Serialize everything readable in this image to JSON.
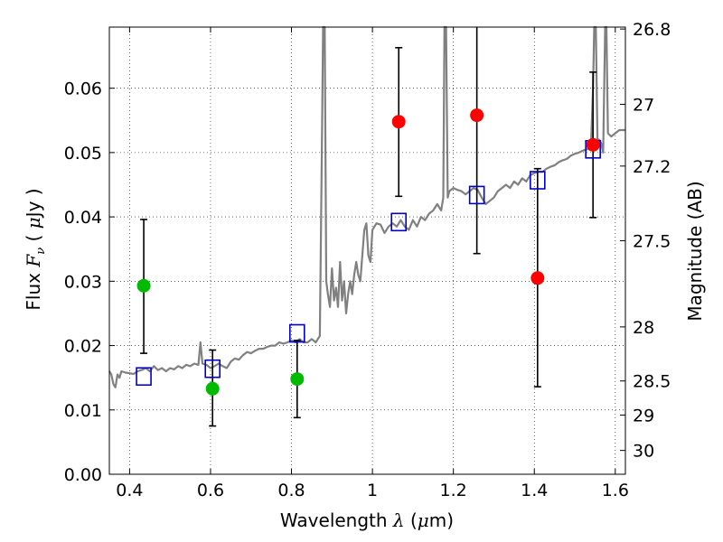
{
  "chart_data": {
    "type": "scatter",
    "xlabel": {
      "prefix": "Wavelength  ",
      "symbol": "λ",
      "unit_open": " (",
      "unit_mu": "μ",
      "unit_rest": "m)"
    },
    "ylabel": {
      "prefix": "Flux  ",
      "symbol": "F",
      "subscript": "ν",
      "unit_open": "  ( ",
      "unit_mu": "μ",
      "unit_rest": "Jy )"
    },
    "y2label": "Magnitude (AB)",
    "xlim": [
      0.35,
      1.625
    ],
    "ylim": [
      0.0,
      0.0695
    ],
    "grid": true,
    "x_ticks": [
      {
        "value": 0.4,
        "label": "0.4"
      },
      {
        "value": 0.6,
        "label": "0.6"
      },
      {
        "value": 0.8,
        "label": "0.8"
      },
      {
        "value": 1.0,
        "label": "1"
      },
      {
        "value": 1.2,
        "label": "1.2"
      },
      {
        "value": 1.4,
        "label": "1.4"
      },
      {
        "value": 1.6,
        "label": "1.6"
      }
    ],
    "y_ticks": [
      {
        "value": 0.0,
        "label": "0.00"
      },
      {
        "value": 0.01,
        "label": "0.01"
      },
      {
        "value": 0.02,
        "label": "0.02"
      },
      {
        "value": 0.03,
        "label": "0.03"
      },
      {
        "value": 0.04,
        "label": "0.04"
      },
      {
        "value": 0.05,
        "label": "0.05"
      },
      {
        "value": 0.06,
        "label": "0.06"
      }
    ],
    "y2_ticks": [
      {
        "label": "26.8",
        "flux": 0.0692
      },
      {
        "label": "27",
        "flux": 0.0575
      },
      {
        "label": "27.2",
        "flux": 0.0479
      },
      {
        "label": "27.5",
        "flux": 0.0363
      },
      {
        "label": "28",
        "flux": 0.0229
      },
      {
        "label": "28.5",
        "flux": 0.0145
      },
      {
        "label": "29",
        "flux": 0.0092
      },
      {
        "label": "30",
        "flux": 0.0037
      }
    ],
    "colors": {
      "spectrum": "#808080",
      "detection": "#ff0000",
      "upper_limit": "#00bb00",
      "model": "#0000cc",
      "errorbar": "#000000"
    },
    "series": [
      {
        "type": "line",
        "points": [
          [
            0.35,
            0.016
          ],
          [
            0.355,
            0.0155
          ],
          [
            0.36,
            0.014
          ],
          [
            0.365,
            0.0135
          ],
          [
            0.37,
            0.0155
          ],
          [
            0.375,
            0.015
          ],
          [
            0.38,
            0.016
          ],
          [
            0.39,
            0.0158
          ],
          [
            0.4,
            0.0157
          ],
          [
            0.41,
            0.0156
          ],
          [
            0.42,
            0.016
          ],
          [
            0.43,
            0.0162
          ],
          [
            0.44,
            0.0165
          ],
          [
            0.45,
            0.016
          ],
          [
            0.46,
            0.0168
          ],
          [
            0.47,
            0.0162
          ],
          [
            0.48,
            0.0165
          ],
          [
            0.49,
            0.016
          ],
          [
            0.5,
            0.0165
          ],
          [
            0.51,
            0.0163
          ],
          [
            0.52,
            0.0168
          ],
          [
            0.53,
            0.0165
          ],
          [
            0.54,
            0.017
          ],
          [
            0.55,
            0.0168
          ],
          [
            0.56,
            0.0172
          ],
          [
            0.57,
            0.017
          ],
          [
            0.575,
            0.0205
          ],
          [
            0.58,
            0.0172
          ],
          [
            0.59,
            0.017
          ],
          [
            0.6,
            0.0165
          ],
          [
            0.61,
            0.0168
          ],
          [
            0.62,
            0.0172
          ],
          [
            0.63,
            0.0168
          ],
          [
            0.64,
            0.0165
          ],
          [
            0.65,
            0.0175
          ],
          [
            0.66,
            0.018
          ],
          [
            0.67,
            0.0178
          ],
          [
            0.68,
            0.0185
          ],
          [
            0.69,
            0.019
          ],
          [
            0.7,
            0.0188
          ],
          [
            0.71,
            0.0192
          ],
          [
            0.72,
            0.0195
          ],
          [
            0.73,
            0.0195
          ],
          [
            0.74,
            0.0198
          ],
          [
            0.75,
            0.02
          ],
          [
            0.76,
            0.02
          ],
          [
            0.77,
            0.0205
          ],
          [
            0.78,
            0.0203
          ],
          [
            0.79,
            0.0205
          ],
          [
            0.8,
            0.0208
          ],
          [
            0.81,
            0.0205
          ],
          [
            0.82,
            0.021
          ],
          [
            0.83,
            0.0205
          ],
          [
            0.84,
            0.0205
          ],
          [
            0.85,
            0.021
          ],
          [
            0.86,
            0.0205
          ],
          [
            0.865,
            0.021
          ],
          [
            0.87,
            0.0215
          ],
          [
            0.875,
            0.05
          ],
          [
            0.878,
            0.0695
          ],
          [
            0.882,
            0.0695
          ],
          [
            0.886,
            0.03
          ],
          [
            0.89,
            0.028
          ],
          [
            0.895,
            0.026
          ],
          [
            0.9,
            0.032
          ],
          [
            0.905,
            0.027
          ],
          [
            0.91,
            0.029
          ],
          [
            0.915,
            0.026
          ],
          [
            0.92,
            0.033
          ],
          [
            0.925,
            0.027
          ],
          [
            0.93,
            0.03
          ],
          [
            0.935,
            0.025
          ],
          [
            0.94,
            0.028
          ],
          [
            0.945,
            0.03
          ],
          [
            0.95,
            0.028
          ],
          [
            0.955,
            0.031
          ],
          [
            0.96,
            0.033
          ],
          [
            0.965,
            0.031
          ],
          [
            0.97,
            0.03
          ],
          [
            0.975,
            0.034
          ],
          [
            0.98,
            0.038
          ],
          [
            0.985,
            0.039
          ],
          [
            0.99,
            0.034
          ],
          [
            0.995,
            0.033
          ],
          [
            1.0,
            0.038
          ],
          [
            1.01,
            0.039
          ],
          [
            1.02,
            0.0388
          ],
          [
            1.03,
            0.0375
          ],
          [
            1.04,
            0.0385
          ],
          [
            1.05,
            0.039
          ],
          [
            1.06,
            0.0385
          ],
          [
            1.07,
            0.0395
          ],
          [
            1.08,
            0.0385
          ],
          [
            1.09,
            0.038
          ],
          [
            1.1,
            0.0395
          ],
          [
            1.11,
            0.0385
          ],
          [
            1.12,
            0.04
          ],
          [
            1.13,
            0.0395
          ],
          [
            1.14,
            0.0405
          ],
          [
            1.15,
            0.041
          ],
          [
            1.16,
            0.042
          ],
          [
            1.17,
            0.041
          ],
          [
            1.175,
            0.043
          ],
          [
            1.178,
            0.0695
          ],
          [
            1.182,
            0.0695
          ],
          [
            1.186,
            0.043
          ],
          [
            1.19,
            0.044
          ],
          [
            1.2,
            0.0445
          ],
          [
            1.21,
            0.0442
          ],
          [
            1.22,
            0.044
          ],
          [
            1.23,
            0.0435
          ],
          [
            1.24,
            0.044
          ],
          [
            1.25,
            0.0445
          ],
          [
            1.26,
            0.0442
          ],
          [
            1.27,
            0.043
          ],
          [
            1.28,
            0.042
          ],
          [
            1.29,
            0.0425
          ],
          [
            1.3,
            0.043
          ],
          [
            1.31,
            0.044
          ],
          [
            1.32,
            0.0445
          ],
          [
            1.33,
            0.045
          ],
          [
            1.34,
            0.0445
          ],
          [
            1.35,
            0.0455
          ],
          [
            1.36,
            0.045
          ],
          [
            1.37,
            0.046
          ],
          [
            1.38,
            0.0455
          ],
          [
            1.39,
            0.0465
          ],
          [
            1.4,
            0.0468
          ],
          [
            1.41,
            0.047
          ],
          [
            1.42,
            0.047
          ],
          [
            1.43,
            0.0475
          ],
          [
            1.44,
            0.0478
          ],
          [
            1.45,
            0.048
          ],
          [
            1.46,
            0.0485
          ],
          [
            1.47,
            0.0488
          ],
          [
            1.48,
            0.049
          ],
          [
            1.49,
            0.0495
          ],
          [
            1.5,
            0.0498
          ],
          [
            1.51,
            0.05
          ],
          [
            1.52,
            0.0503
          ],
          [
            1.53,
            0.0505
          ],
          [
            1.54,
            0.051
          ],
          [
            1.545,
            0.06
          ],
          [
            1.548,
            0.0695
          ],
          [
            1.552,
            0.0695
          ],
          [
            1.556,
            0.052
          ],
          [
            1.56,
            0.052
          ],
          [
            1.565,
            0.0515
          ],
          [
            1.57,
            0.05
          ],
          [
            1.575,
            0.0695
          ],
          [
            1.578,
            0.0695
          ],
          [
            1.582,
            0.053
          ],
          [
            1.59,
            0.0525
          ],
          [
            1.6,
            0.053
          ],
          [
            1.61,
            0.0535
          ],
          [
            1.625,
            0.0535
          ]
        ]
      },
      {
        "type": "scatter",
        "marker": "circle-green",
        "points": [
          [
            0.435,
            0.0293
          ],
          [
            0.605,
            0.0133
          ],
          [
            0.814,
            0.0148
          ]
        ]
      },
      {
        "type": "scatter",
        "marker": "circle-red",
        "points": [
          [
            1.065,
            0.0548
          ],
          [
            1.258,
            0.0558
          ],
          [
            1.408,
            0.0305
          ],
          [
            1.545,
            0.0512
          ]
        ]
      },
      {
        "type": "errorbar",
        "points": [
          {
            "x": 0.435,
            "ylo": 0.0188,
            "yhi": 0.0396
          },
          {
            "x": 0.605,
            "ylo": 0.0075,
            "yhi": 0.0193
          },
          {
            "x": 0.814,
            "ylo": 0.0088,
            "yhi": 0.0208
          },
          {
            "x": 1.065,
            "ylo": 0.0432,
            "yhi": 0.0663
          },
          {
            "x": 1.258,
            "ylo": 0.0343,
            "yhi": 0.0695
          },
          {
            "x": 1.408,
            "ylo": 0.0136,
            "yhi": 0.0475
          },
          {
            "x": 1.545,
            "ylo": 0.0399,
            "yhi": 0.0625
          }
        ]
      },
      {
        "type": "scatter",
        "marker": "square-open-blue",
        "points": [
          [
            0.435,
            0.0152
          ],
          [
            0.605,
            0.0164
          ],
          [
            0.814,
            0.0219
          ],
          [
            1.065,
            0.0392
          ],
          [
            1.258,
            0.0434
          ],
          [
            1.408,
            0.0457
          ],
          [
            1.545,
            0.0505
          ]
        ]
      }
    ]
  }
}
